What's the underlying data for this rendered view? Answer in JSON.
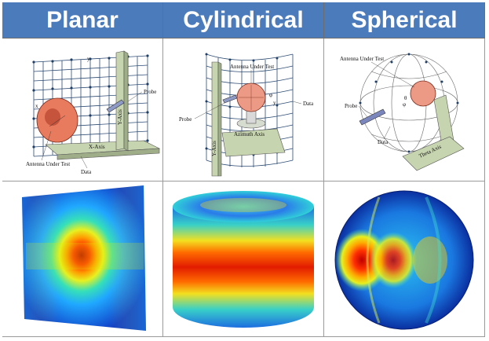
{
  "headers": [
    "Planar",
    "Cylindrical",
    "Spherical"
  ],
  "planar": {
    "y_label": "y",
    "x_label": "x",
    "z_label": "z",
    "probe": "Probe",
    "y_axis": "Y-Axis",
    "x_axis": "X-Axis",
    "aut": "Antenna Under Test",
    "data": "Data"
  },
  "cylindrical": {
    "aut": "Antenna Under Test",
    "probe": "Probe",
    "azimuth": "Azimuth Axis",
    "y_axis": "Y-Axis",
    "data": "Data",
    "phi": "φ",
    "y": "y"
  },
  "spherical": {
    "aut": "Antenna Under Test",
    "probe": "Probe",
    "data": "Data",
    "theta_axis": "Theta Axis",
    "phi": "φ",
    "theta": "θ"
  },
  "colors": {
    "header_bg": "#4b7bbb",
    "header_text": "#ffffff"
  }
}
